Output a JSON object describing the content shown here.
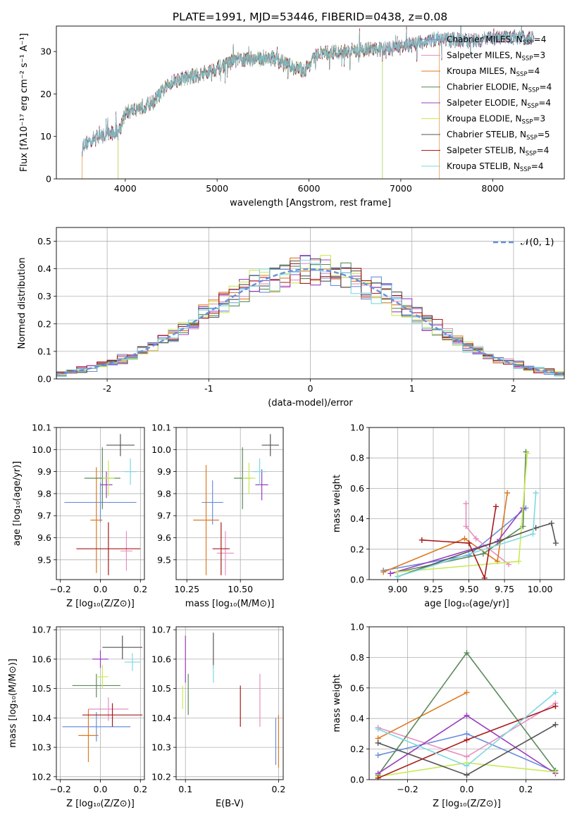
{
  "figure_title": "PLATE=1991, MJD=53446, FIBERID=0438, z=0.08",
  "models": [
    {
      "name": "Chabrier MILES",
      "nssp": "4",
      "color": "#6a8fdc"
    },
    {
      "name": "Salpeter MILES",
      "nssp": "3",
      "color": "#e78fbf"
    },
    {
      "name": "Kroupa MILES",
      "nssp": "4",
      "color": "#dd7a22"
    },
    {
      "name": "Chabrier ELODIE",
      "nssp": "4",
      "color": "#5b8a5b"
    },
    {
      "name": "Salpeter ELODIE",
      "nssp": "4",
      "color": "#9b3fbf"
    },
    {
      "name": "Kroupa ELODIE",
      "nssp": "3",
      "color": "#c8ea56"
    },
    {
      "name": "Chabrier STELIB",
      "nssp": "5",
      "color": "#555555"
    },
    {
      "name": "Salpeter STELIB",
      "nssp": "4",
      "color": "#a81b1b"
    },
    {
      "name": "Kroupa STELIB",
      "nssp": "4",
      "color": "#7ed8e0"
    }
  ],
  "chart_data": [
    {
      "id": "spectrum",
      "type": "line",
      "title": "PLATE=1991, MJD=53446, FIBERID=0438, z=0.08",
      "xlabel": "wavelength [Angstrom, rest frame]",
      "ylabel": "Flux [fλ10⁻¹⁷ erg cm⁻² s⁻¹ A⁻¹]",
      "xlim": [
        3250,
        8780
      ],
      "ylim": [
        0,
        36
      ],
      "xticks": [
        4000,
        5000,
        6000,
        7000,
        8000
      ],
      "yticks": [
        0,
        10,
        20,
        30
      ],
      "grid": false,
      "legend": "top-right",
      "spectrum_trend": {
        "wavelength": [
          3530,
          3700,
          3920,
          4000,
          4300,
          4500,
          4800,
          5000,
          5200,
          5600,
          5800,
          5950,
          6100,
          6400,
          6600,
          6800,
          7000,
          7200,
          7400,
          7700,
          8000,
          8300,
          8450
        ],
        "flux": [
          8,
          10,
          11,
          15.5,
          18,
          23,
          24.5,
          26,
          28,
          28.5,
          26.5,
          25.5,
          29.5,
          30,
          30.5,
          30.5,
          31,
          32,
          33,
          32.5,
          33,
          33.5,
          33
        ]
      },
      "truncated_edges": {
        "Kroupa MILES": [
          3530,
          7420
        ],
        "Kroupa ELODIE": [
          3920,
          6800
        ],
        "Chabrier ELODIE": [
          3920,
          6800
        ]
      }
    },
    {
      "id": "residuals",
      "type": "area",
      "xlabel": "(data-model)/error",
      "ylabel": "Normed distribution",
      "xlim": [
        -2.5,
        2.5
      ],
      "ylim": [
        0,
        0.55
      ],
      "xticks": [
        -2,
        -1,
        0,
        1,
        2
      ],
      "yticks": [
        0.0,
        0.1,
        0.2,
        0.3,
        0.4,
        0.5
      ],
      "grid": true,
      "legend": "top-right",
      "legend_label": "𝒩(0, 1)",
      "bin_width": 0.1,
      "bin_centers": [
        -2.45,
        -2.35,
        -2.25,
        -2.15,
        -2.05,
        -1.95,
        -1.85,
        -1.75,
        -1.65,
        -1.55,
        -1.45,
        -1.35,
        -1.25,
        -1.15,
        -1.05,
        -0.95,
        -0.85,
        -0.75,
        -0.65,
        -0.55,
        -0.45,
        -0.35,
        -0.25,
        -0.15,
        -0.05,
        0.05,
        0.15,
        0.25,
        0.35,
        0.45,
        0.55,
        0.65,
        0.75,
        0.85,
        0.95,
        1.05,
        1.15,
        1.25,
        1.35,
        1.45,
        1.55,
        1.65,
        1.75,
        1.85,
        1.95,
        2.05,
        2.15,
        2.25,
        2.35,
        2.45
      ],
      "reference_curve": "standard normal"
    },
    {
      "id": "age_vs_Z",
      "type": "scatter",
      "xlabel": "Z [log₁₀(Z/Z⊙)]",
      "ylabel": "age  [log₁₀(age/yr)]",
      "xlim": [
        -0.22,
        0.22
      ],
      "ylim": [
        9.41,
        10.1
      ],
      "xticks": [
        -0.2,
        0.0,
        0.2
      ],
      "xticklabels": [
        "−0.2",
        "0.0",
        "0.2"
      ],
      "yticks": [
        9.5,
        9.6,
        9.7,
        9.8,
        9.9,
        10.0,
        10.1
      ],
      "grid": true,
      "points": [
        {
          "x": 0.0,
          "xerr": 0.18,
          "y": 9.76,
          "yerr": 0.09,
          "model": 0
        },
        {
          "x": 0.13,
          "xerr": 0.03,
          "y": 9.54,
          "yerr": 0.09,
          "model": 1
        },
        {
          "x": -0.02,
          "xerr": 0.03,
          "y": 9.68,
          "yerr": 0.24,
          "model": 2
        },
        {
          "x": 0.01,
          "xerr": 0.09,
          "y": 9.87,
          "yerr": 0.14,
          "model": 3
        },
        {
          "x": 0.03,
          "xerr": 0.03,
          "y": 9.84,
          "yerr": 0.06,
          "model": 4
        },
        {
          "x": 0.04,
          "xerr": 0.03,
          "y": 9.87,
          "yerr": 0.08,
          "model": 5
        },
        {
          "x": 0.1,
          "xerr": 0.07,
          "y": 10.02,
          "yerr": 0.05,
          "model": 6
        },
        {
          "x": 0.04,
          "xerr": 0.16,
          "y": 9.55,
          "yerr": 0.12,
          "model": 7
        },
        {
          "x": 0.15,
          "xerr": 0.03,
          "y": 9.9,
          "yerr": 0.06,
          "model": 8
        }
      ]
    },
    {
      "id": "age_vs_mass",
      "type": "scatter",
      "xlabel": "mass [log₁₀(M/M⊙)]",
      "ylabel": "",
      "xlim": [
        10.2,
        10.7
      ],
      "ylim": [
        9.41,
        10.1
      ],
      "xticks": [
        10.25,
        10.5
      ],
      "xticklabels": [
        "10.25",
        "10.50"
      ],
      "yticks": [
        9.5,
        9.6,
        9.7,
        9.8,
        9.9,
        10.0,
        10.1
      ],
      "grid": true,
      "points": [
        {
          "x": 10.37,
          "xerr": 0.05,
          "y": 9.76,
          "yerr": 0.1,
          "model": 0
        },
        {
          "x": 10.43,
          "xerr": 0.04,
          "y": 9.53,
          "yerr": 0.1,
          "model": 1
        },
        {
          "x": 10.34,
          "xerr": 0.06,
          "y": 9.68,
          "yerr": 0.25,
          "model": 2
        },
        {
          "x": 10.51,
          "xerr": 0.04,
          "y": 9.87,
          "yerr": 0.14,
          "model": 3
        },
        {
          "x": 10.6,
          "xerr": 0.03,
          "y": 9.84,
          "yerr": 0.07,
          "model": 4
        },
        {
          "x": 10.54,
          "xerr": 0.03,
          "y": 9.87,
          "yerr": 0.07,
          "model": 5
        },
        {
          "x": 10.64,
          "xerr": 0.04,
          "y": 10.02,
          "yerr": 0.05,
          "model": 6
        },
        {
          "x": 10.41,
          "xerr": 0.04,
          "y": 9.55,
          "yerr": 0.12,
          "model": 7
        },
        {
          "x": 10.59,
          "xerr": 0.03,
          "y": 9.9,
          "yerr": 0.06,
          "model": 8
        }
      ]
    },
    {
      "id": "weight_vs_age",
      "type": "line",
      "xlabel": "age  [log₁₀(age/yr)]",
      "ylabel": "mass weight",
      "xlim": [
        8.8,
        10.17
      ],
      "ylim": [
        0,
        1
      ],
      "xticks": [
        9.0,
        9.25,
        9.5,
        9.75,
        10.0
      ],
      "xticklabels": [
        "9.00",
        "9.25",
        "9.50",
        "9.75",
        "10.00"
      ],
      "yticks": [
        0,
        0.2,
        0.4,
        0.6,
        0.8,
        1.0
      ],
      "grid": true,
      "series": [
        {
          "model": 0,
          "x": [
            8.9,
            9.5,
            9.9
          ],
          "y": [
            0.06,
            0.16,
            0.47
          ]
        },
        {
          "model": 1,
          "x": [
            9.48,
            9.48,
            9.55,
            9.78
          ],
          "y": [
            0.5,
            0.35,
            0.27,
            0.1
          ]
        },
        {
          "model": 2,
          "x": [
            8.9,
            9.47,
            9.7,
            9.77
          ],
          "y": [
            0.05,
            0.27,
            0.12,
            0.57
          ]
        },
        {
          "model": 3,
          "x": [
            8.95,
            9.6,
            9.88,
            9.9
          ],
          "y": [
            0.04,
            0.17,
            0.35,
            0.84
          ]
        },
        {
          "model": 4,
          "x": [
            8.95,
            9.7,
            9.88
          ],
          "y": [
            0.04,
            0.25,
            0.47
          ]
        },
        {
          "model": 5,
          "x": [
            9.0,
            9.85,
            9.91
          ],
          "y": [
            0.05,
            0.12,
            0.83
          ]
        },
        {
          "model": 6,
          "x": [
            9.0,
            9.97,
            10.08,
            10.11
          ],
          "y": [
            0.02,
            0.34,
            0.37,
            0.24
          ]
        },
        {
          "model": 7,
          "x": [
            9.17,
            9.5,
            9.61,
            9.69
          ],
          "y": [
            0.26,
            0.24,
            0.01,
            0.48
          ]
        },
        {
          "model": 8,
          "x": [
            9.0,
            9.95,
            9.97
          ],
          "y": [
            0.02,
            0.3,
            0.57
          ]
        }
      ]
    },
    {
      "id": "mass_vs_Z",
      "type": "scatter",
      "xlabel": "Z [log₁₀(Z/Z⊙)]",
      "ylabel": "mass [log₁₀(M/M⊙)]",
      "xlim": [
        -0.22,
        0.22
      ],
      "ylim": [
        10.19,
        10.71
      ],
      "xticks": [
        -0.2,
        0.0,
        0.2
      ],
      "xticklabels": [
        "−0.2",
        "0.0",
        "0.2"
      ],
      "yticks": [
        10.2,
        10.3,
        10.4,
        10.5,
        10.6,
        10.7
      ],
      "grid": true,
      "points": [
        {
          "x": -0.02,
          "xerr": 0.17,
          "y": 10.37,
          "yerr": 0.05,
          "model": 0
        },
        {
          "x": 0.04,
          "xerr": 0.1,
          "y": 10.43,
          "yerr": 0.04,
          "model": 1
        },
        {
          "x": -0.06,
          "xerr": 0.05,
          "y": 10.34,
          "yerr": 0.09,
          "model": 2
        },
        {
          "x": -0.02,
          "xerr": 0.12,
          "y": 10.51,
          "yerr": 0.04,
          "model": 3
        },
        {
          "x": 0.0,
          "xerr": 0.04,
          "y": 10.6,
          "yerr": 0.03,
          "model": 4
        },
        {
          "x": 0.01,
          "xerr": 0.03,
          "y": 10.54,
          "yerr": 0.04,
          "model": 5
        },
        {
          "x": 0.11,
          "xerr": 0.1,
          "y": 10.64,
          "yerr": 0.04,
          "model": 6
        },
        {
          "x": 0.06,
          "xerr": 0.15,
          "y": 10.41,
          "yerr": 0.04,
          "model": 7
        },
        {
          "x": 0.16,
          "xerr": 0.04,
          "y": 10.59,
          "yerr": 0.03,
          "model": 8
        }
      ]
    },
    {
      "id": "mass_vs_ebv",
      "type": "scatter",
      "xlabel": "E(B-V)",
      "ylabel": "",
      "xlim": [
        0.09,
        0.205
      ],
      "ylim": [
        10.19,
        10.71
      ],
      "xticks": [
        0.1,
        0.2
      ],
      "xticklabels": [
        "0.1",
        "0.2"
      ],
      "yticks": [
        10.2,
        10.3,
        10.4,
        10.5,
        10.6,
        10.7
      ],
      "grid": true,
      "points": [
        {
          "x": 0.197,
          "y": 10.32,
          "yerr": 0.08,
          "model": 0
        },
        {
          "x": 0.18,
          "y": 10.46,
          "yerr": 0.09,
          "model": 1
        },
        {
          "x": 0.2,
          "y": 10.32,
          "yerr": 0.09,
          "model": 2
        },
        {
          "x": 0.103,
          "y": 10.48,
          "yerr": 0.07,
          "model": 3
        },
        {
          "x": 0.1,
          "y": 10.6,
          "yerr": 0.08,
          "model": 4
        },
        {
          "x": 0.097,
          "y": 10.47,
          "yerr": 0.04,
          "model": 5
        },
        {
          "x": 0.13,
          "y": 10.63,
          "yerr": 0.06,
          "model": 6
        },
        {
          "x": 0.159,
          "y": 10.44,
          "yerr": 0.07,
          "model": 7
        },
        {
          "x": 0.13,
          "y": 10.55,
          "yerr": 0.03,
          "model": 8
        }
      ]
    },
    {
      "id": "weight_vs_Z",
      "type": "line",
      "xlabel": "Z [log₁₀(Z/Z⊙)]",
      "ylabel": "mass weight",
      "xlim": [
        -0.33,
        0.33
      ],
      "ylim": [
        0,
        1
      ],
      "xticks": [
        -0.2,
        0.0,
        0.2
      ],
      "xticklabels": [
        "−0.2",
        "0.0",
        "0.2"
      ],
      "yticks": [
        0,
        0.2,
        0.4,
        0.6,
        0.8,
        1.0
      ],
      "grid": true,
      "series": [
        {
          "model": 0,
          "x": [
            -0.3,
            0.0,
            0.3
          ],
          "y": [
            0.16,
            0.3,
            0.05
          ]
        },
        {
          "model": 1,
          "x": [
            -0.3,
            0.0,
            0.3
          ],
          "y": [
            0.34,
            0.15,
            0.5
          ]
        },
        {
          "model": 2,
          "x": [
            -0.3,
            0.0
          ],
          "y": [
            0.27,
            0.57
          ]
        },
        {
          "model": 3,
          "x": [
            -0.3,
            0.0,
            0.3
          ],
          "y": [
            0.03,
            0.83,
            0.06
          ]
        },
        {
          "model": 4,
          "x": [
            -0.3,
            0.0,
            0.3
          ],
          "y": [
            0.04,
            0.42,
            0.04
          ]
        },
        {
          "model": 5,
          "x": [
            -0.3,
            0.0,
            0.3
          ],
          "y": [
            0.02,
            0.11,
            0.05
          ]
        },
        {
          "model": 6,
          "x": [
            -0.3,
            0.0,
            0.3
          ],
          "y": [
            0.24,
            0.03,
            0.36
          ]
        },
        {
          "model": 7,
          "x": [
            -0.3,
            0.0,
            0.3
          ],
          "y": [
            0.01,
            0.26,
            0.48
          ]
        },
        {
          "model": 8,
          "x": [
            -0.3,
            0.0,
            0.3
          ],
          "y": [
            0.33,
            0.09,
            0.57
          ]
        }
      ]
    }
  ]
}
